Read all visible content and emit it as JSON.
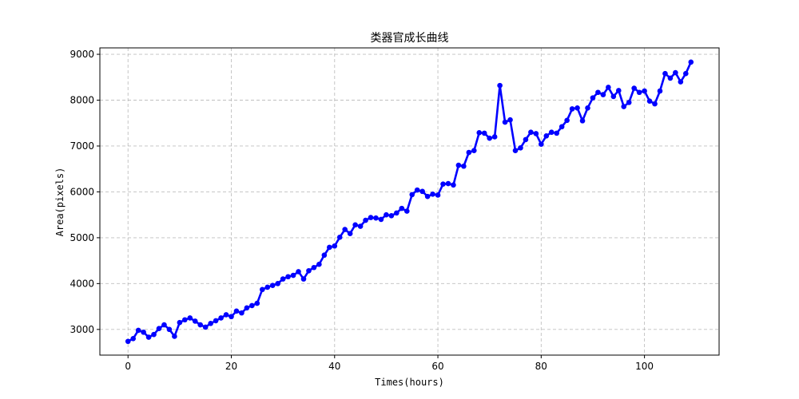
{
  "chart_data": {
    "type": "line",
    "title": "类器官成长曲线",
    "xlabel": "Times(hours)",
    "ylabel": "Area(pixels)",
    "xlim": [
      -5.45,
      114.45
    ],
    "ylim": [
      2440,
      9140
    ],
    "xticks": [
      0,
      20,
      40,
      60,
      80,
      100
    ],
    "yticks": [
      3000,
      4000,
      5000,
      6000,
      7000,
      8000,
      9000
    ],
    "grid": true,
    "line_color": "#0000ff",
    "marker_color": "#0000ff",
    "series": [
      {
        "x": [
          0,
          1,
          2,
          3,
          4,
          5,
          6,
          7,
          8,
          9,
          10,
          11,
          12,
          13,
          14,
          15,
          16,
          17,
          18,
          19,
          20,
          21,
          22,
          23,
          24,
          25,
          26,
          27,
          28,
          29,
          30,
          31,
          32,
          33,
          34,
          35,
          36,
          37,
          38,
          39,
          40,
          41,
          42,
          43,
          44,
          45,
          46,
          47,
          48,
          49,
          50,
          51,
          52,
          53,
          54,
          55,
          56,
          57,
          58,
          59,
          60,
          61,
          62,
          63,
          64,
          65,
          66,
          67,
          68,
          69,
          70,
          71,
          72,
          73,
          74,
          75,
          76,
          77,
          78,
          79,
          80,
          81,
          82,
          83,
          84,
          85,
          86,
          87,
          88,
          89,
          90,
          91,
          92,
          93,
          94,
          95,
          96,
          97,
          98,
          99,
          100,
          101,
          102,
          103,
          104,
          105,
          106,
          107,
          108,
          109
        ],
        "y": [
          2740,
          2800,
          2980,
          2940,
          2830,
          2890,
          3020,
          3100,
          3000,
          2850,
          3150,
          3210,
          3250,
          3180,
          3100,
          3050,
          3130,
          3190,
          3250,
          3320,
          3280,
          3400,
          3360,
          3470,
          3520,
          3570,
          3870,
          3920,
          3960,
          4000,
          4100,
          4150,
          4180,
          4260,
          4100,
          4280,
          4350,
          4420,
          4620,
          4790,
          4820,
          5010,
          5180,
          5090,
          5280,
          5250,
          5380,
          5440,
          5430,
          5400,
          5500,
          5480,
          5540,
          5640,
          5580,
          5940,
          6040,
          6010,
          5900,
          5950,
          5930,
          6170,
          6180,
          6150,
          6580,
          6560,
          6860,
          6900,
          7290,
          7280,
          7170,
          7200,
          8320,
          7520,
          7570,
          6900,
          6960,
          7140,
          7300,
          7270,
          7040,
          7220,
          7300,
          7280,
          7420,
          7560,
          7810,
          7830,
          7550,
          7830,
          8050,
          8170,
          8120,
          8280,
          8080,
          8210,
          7860,
          7950,
          8260,
          8170,
          8200,
          7980,
          7920,
          8200,
          8580,
          8480,
          8600,
          8400,
          8580,
          8830
        ]
      }
    ]
  }
}
